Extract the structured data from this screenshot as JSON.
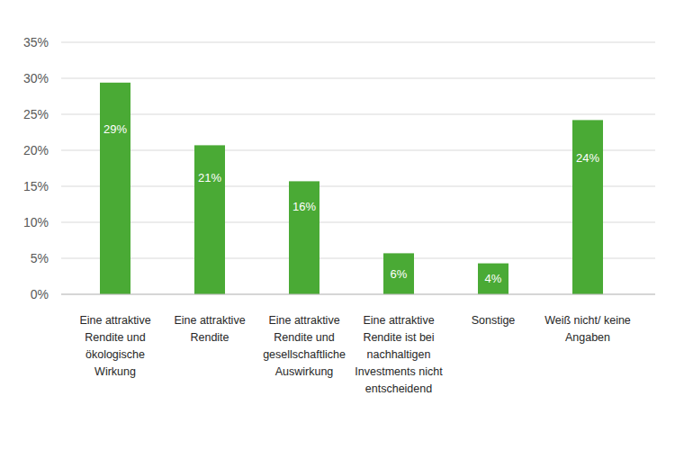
{
  "chart_data": {
    "type": "bar",
    "categories": [
      "Eine attraktive Rendite und ökologische Wirkung",
      "Eine attraktive Rendite",
      "Eine attraktive Rendite und gesellschaftliche Auswirkung",
      "Eine attraktive Rendite ist bei nachhaltigen Investments nicht entscheidend",
      "Sonstige",
      "Weiß nicht/ keine Angaben"
    ],
    "values": [
      29.4,
      20.7,
      15.7,
      5.7,
      4.3,
      24.2
    ],
    "value_labels": [
      "29%",
      "21%",
      "16%",
      "6%",
      "4%",
      "24%"
    ],
    "color": "#4aaa35",
    "ylim": [
      0,
      35
    ],
    "yticks": [
      {
        "value": 0,
        "label": "0%"
      },
      {
        "value": 5,
        "label": "5%"
      },
      {
        "value": 10,
        "label": "10%"
      },
      {
        "value": 15,
        "label": "15%"
      },
      {
        "value": 20,
        "label": "20%"
      },
      {
        "value": 25,
        "label": "25%"
      },
      {
        "value": 30,
        "label": "30%"
      },
      {
        "value": 35,
        "label": "35%"
      }
    ],
    "grid": true,
    "data_labels": true
  }
}
